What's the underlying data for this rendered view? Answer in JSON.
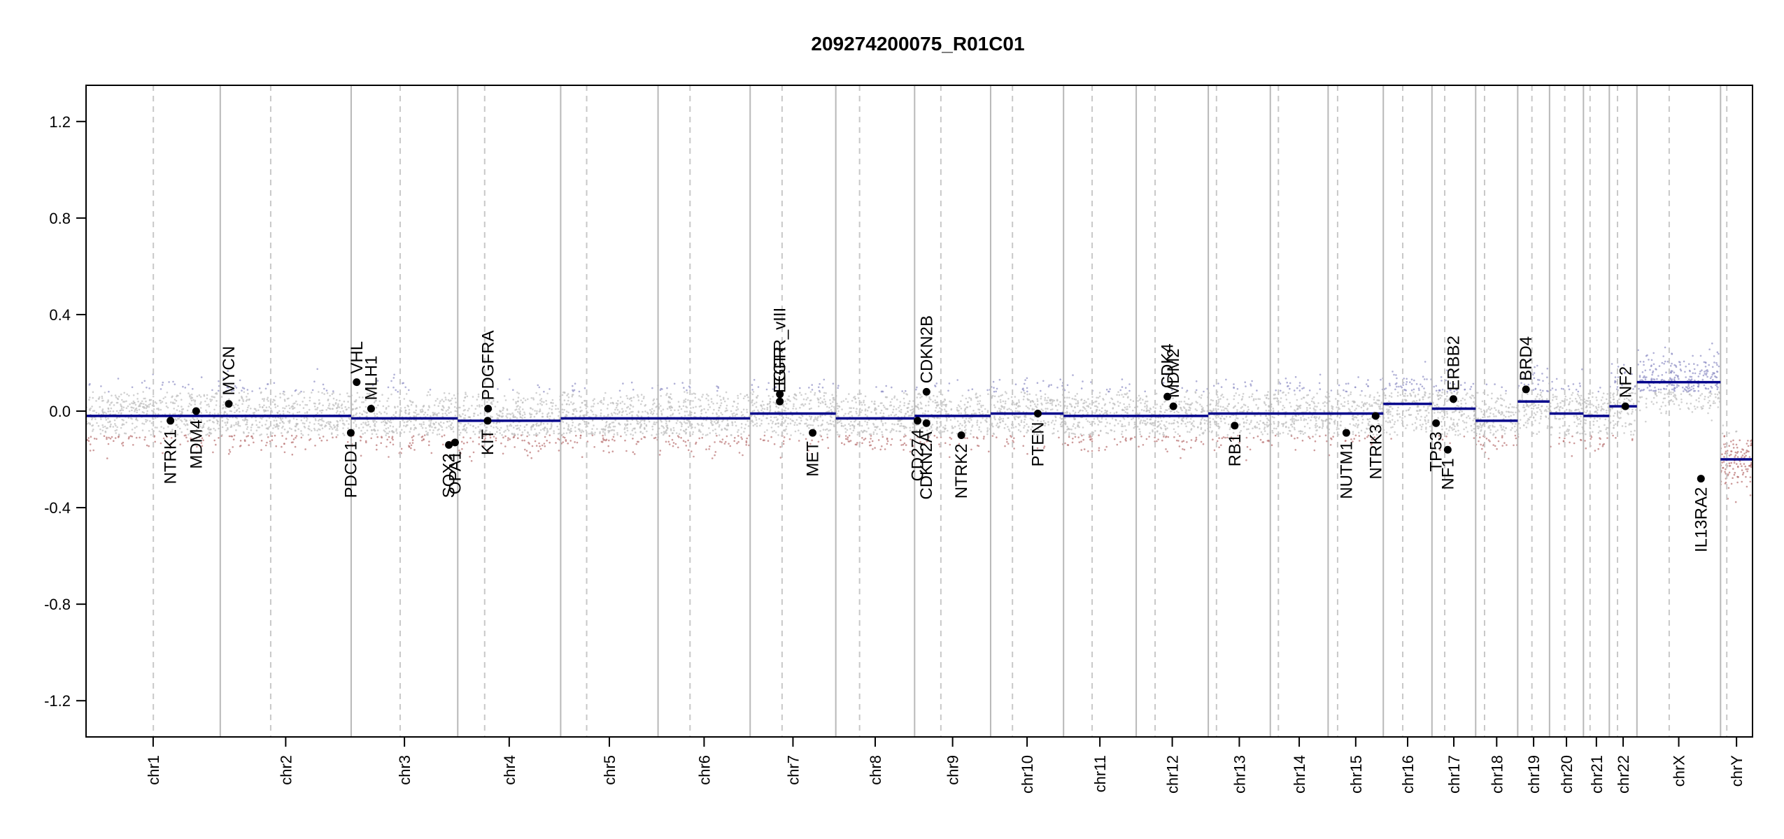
{
  "chart_data": {
    "type": "scatter",
    "title": "209274200075_R01C01",
    "xlabel": "",
    "ylabel": "",
    "ylim": [
      -1.35,
      1.35
    ],
    "y_ticks": [
      -1.2,
      -0.8,
      -0.4,
      0.0,
      0.4,
      0.8,
      1.2
    ],
    "y_tick_labels": [
      "-1.2",
      "-0.8",
      "-0.4",
      "0.0",
      "0.4",
      "0.8",
      "1.2"
    ],
    "grid": false,
    "colors": {
      "segment": "#00008b",
      "gain_points": "#8f8fc4",
      "loss_points": "#b87070",
      "neutral_points": "#bdbdbd",
      "boundary_line": "#b8b8b8",
      "centromere_line": "#c8c8c8",
      "gene_marker": "#000000"
    },
    "chromosomes": [
      {
        "name": "chr1",
        "start": 0.0,
        "end": 249.3,
        "centromere": 125.0,
        "segment": -0.02
      },
      {
        "name": "chr2",
        "start": 249.3,
        "end": 492.5,
        "centromere": 343.0,
        "segment": -0.02
      },
      {
        "name": "chr3",
        "start": 492.5,
        "end": 690.5,
        "centromere": 583.5,
        "segment": -0.03
      },
      {
        "name": "chr4",
        "start": 690.5,
        "end": 881.7,
        "centromere": 740.5,
        "segment": -0.04
      },
      {
        "name": "chr5",
        "start": 881.7,
        "end": 1062.6,
        "centromere": 930.0,
        "segment": -0.03
      },
      {
        "name": "chr6",
        "start": 1062.6,
        "end": 1233.7,
        "centromere": 1122.0,
        "segment": -0.03
      },
      {
        "name": "chr7",
        "start": 1233.7,
        "end": 1392.8,
        "centromere": 1293.0,
        "segment": -0.01
      },
      {
        "name": "chr8",
        "start": 1392.8,
        "end": 1539.2,
        "centromere": 1437.0,
        "segment": -0.03
      },
      {
        "name": "chr9",
        "start": 1539.2,
        "end": 1680.4,
        "centromere": 1588.0,
        "segment": -0.02
      },
      {
        "name": "chr10",
        "start": 1680.4,
        "end": 1815.9,
        "centromere": 1721.0,
        "segment": -0.01
      },
      {
        "name": "chr11",
        "start": 1815.9,
        "end": 1950.9,
        "centromere": 1869.0,
        "segment": -0.02
      },
      {
        "name": "chr12",
        "start": 1950.9,
        "end": 2084.8,
        "centromere": 1986.0,
        "segment": -0.02
      },
      {
        "name": "chr13",
        "start": 2084.8,
        "end": 2200.0,
        "centromere": 2100.0,
        "segment": -0.01
      },
      {
        "name": "chr14",
        "start": 2200.0,
        "end": 2307.4,
        "centromere": 2215.0,
        "segment": -0.01
      },
      {
        "name": "chr15",
        "start": 2307.4,
        "end": 2409.9,
        "centromere": 2325.0,
        "segment": -0.01
      },
      {
        "name": "chr16",
        "start": 2409.9,
        "end": 2500.3,
        "centromere": 2446.0,
        "segment": 0.03
      },
      {
        "name": "chr17",
        "start": 2500.3,
        "end": 2581.5,
        "centromere": 2524.0,
        "segment": 0.01
      },
      {
        "name": "chr18",
        "start": 2581.5,
        "end": 2659.6,
        "centromere": 2598.0,
        "segment": -0.04
      },
      {
        "name": "chr19",
        "start": 2659.6,
        "end": 2718.7,
        "centromere": 2686.0,
        "segment": 0.04
      },
      {
        "name": "chr20",
        "start": 2718.7,
        "end": 2781.7,
        "centromere": 2747.0,
        "segment": -0.01
      },
      {
        "name": "chr21",
        "start": 2781.7,
        "end": 2829.8,
        "centromere": 2794.0,
        "segment": -0.02
      },
      {
        "name": "chr22",
        "start": 2829.8,
        "end": 2881.1,
        "centromere": 2845.0,
        "segment": 0.02
      },
      {
        "name": "chrX",
        "start": 2881.1,
        "end": 3036.4,
        "centromere": 2941.0,
        "segment": 0.12
      },
      {
        "name": "chrY",
        "start": 3036.4,
        "end": 3095.8,
        "centromere": 3048.0,
        "segment": -0.2
      }
    ],
    "genes": [
      {
        "name": "NTRK1",
        "pos": 156.8,
        "value": -0.04,
        "side": "below"
      },
      {
        "name": "MDM4",
        "pos": 204.5,
        "value": 0.0,
        "side": "below"
      },
      {
        "name": "MYCN",
        "pos": 265.1,
        "value": 0.03,
        "side": "above"
      },
      {
        "name": "PDCD1",
        "pos": 491.8,
        "value": -0.09,
        "side": "below"
      },
      {
        "name": "VHL",
        "pos": 502.7,
        "value": 0.12,
        "side": "above"
      },
      {
        "name": "MLH1",
        "pos": 529.5,
        "value": 0.01,
        "side": "above"
      },
      {
        "name": "SOX2",
        "pos": 674.0,
        "value": -0.14,
        "side": "below"
      },
      {
        "name": "OPA1",
        "pos": 685.5,
        "value": -0.13,
        "side": "below"
      },
      {
        "name": "KIT",
        "pos": 746.0,
        "value": -0.04,
        "side": "below"
      },
      {
        "name": "PDGFRA",
        "pos": 746.8,
        "value": 0.01,
        "side": "above"
      },
      {
        "name": "EGFR",
        "pos": 1288.8,
        "value": 0.04,
        "side": "above"
      },
      {
        "name": "EGFR_vIII",
        "pos": 1288.9,
        "value": 0.07,
        "side": "above"
      },
      {
        "name": "MET",
        "pos": 1349.8,
        "value": -0.09,
        "side": "below"
      },
      {
        "name": "CD274",
        "pos": 1544.7,
        "value": -0.04,
        "side": "below"
      },
      {
        "name": "CDKN2A",
        "pos": 1561.2,
        "value": -0.05,
        "side": "below"
      },
      {
        "name": "CDKN2B",
        "pos": 1561.3,
        "value": 0.08,
        "side": "above"
      },
      {
        "name": "NTRK2",
        "pos": 1626.0,
        "value": -0.1,
        "side": "below"
      },
      {
        "name": "PTEN",
        "pos": 1768.1,
        "value": -0.01,
        "side": "below"
      },
      {
        "name": "CDK4",
        "pos": 2008.8,
        "value": 0.06,
        "side": "above"
      },
      {
        "name": "MDM2",
        "pos": 2019.9,
        "value": 0.02,
        "side": "above"
      },
      {
        "name": "RB1",
        "pos": 2133.8,
        "value": -0.06,
        "side": "below"
      },
      {
        "name": "NUTM1",
        "pos": 2341.2,
        "value": -0.09,
        "side": "below"
      },
      {
        "name": "NTRK3",
        "pos": 2395.7,
        "value": -0.02,
        "side": "below"
      },
      {
        "name": "TP53",
        "pos": 2507.9,
        "value": -0.05,
        "side": "below"
      },
      {
        "name": "NF1",
        "pos": 2529.6,
        "value": -0.16,
        "side": "below"
      },
      {
        "name": "ERBB2",
        "pos": 2540.1,
        "value": 0.05,
        "side": "above"
      },
      {
        "name": "BRD4",
        "pos": 2675.0,
        "value": 0.09,
        "side": "above"
      },
      {
        "name": "NF2",
        "pos": 2859.6,
        "value": 0.02,
        "side": "above"
      },
      {
        "name": "IL13RA2",
        "pos": 3000.0,
        "value": -0.28,
        "side": "below"
      }
    ]
  }
}
